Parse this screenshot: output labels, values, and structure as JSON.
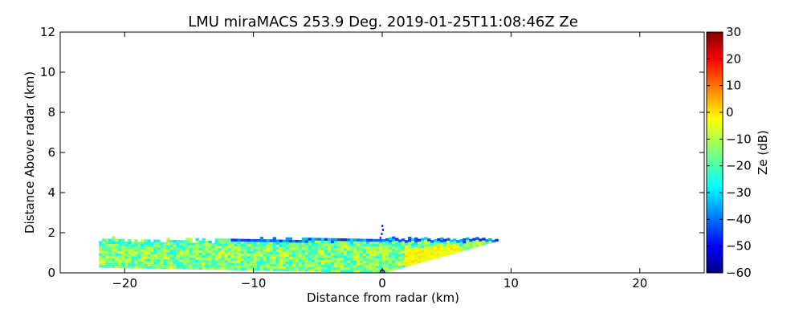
{
  "chart_data": {
    "type": "heatmap",
    "title": "LMU miraMACS 253.9 Deg. 2019-01-25T11:08:46Z  Ze",
    "xlabel": "Distance from radar (km)",
    "ylabel": "Distance Above radar  (km)",
    "xlim": [
      -25,
      25
    ],
    "ylim": [
      0,
      12
    ],
    "x_ticks": [
      -20,
      -10,
      0,
      10,
      20
    ],
    "x_tick_labels": [
      "−20",
      "−10",
      "0",
      "10",
      "20"
    ],
    "y_ticks": [
      0,
      2,
      4,
      6,
      8,
      10,
      12
    ],
    "y_tick_labels": [
      "0",
      "2",
      "4",
      "6",
      "8",
      "10",
      "12"
    ],
    "colorbar": {
      "label": "Ze (dB)",
      "range": [
        -60,
        30
      ],
      "ticks": [
        30,
        20,
        10,
        0,
        -10,
        -20,
        -30,
        -40,
        -50,
        -60
      ],
      "tick_labels": [
        "30",
        "20",
        "10",
        "0",
        "−10",
        "−20",
        "−30",
        "−40",
        "−50",
        "−60"
      ],
      "colormap": "jet"
    },
    "echo_region": {
      "x_range": [
        -22,
        9
      ],
      "cloud_top_km": 1.7,
      "cloud_base_km_at_min_x": 0.3,
      "typical_ze_db": [
        -25,
        -5
      ],
      "strongest_ze_db": 0,
      "noise_top_ze_db": -45
    },
    "grid": false
  }
}
